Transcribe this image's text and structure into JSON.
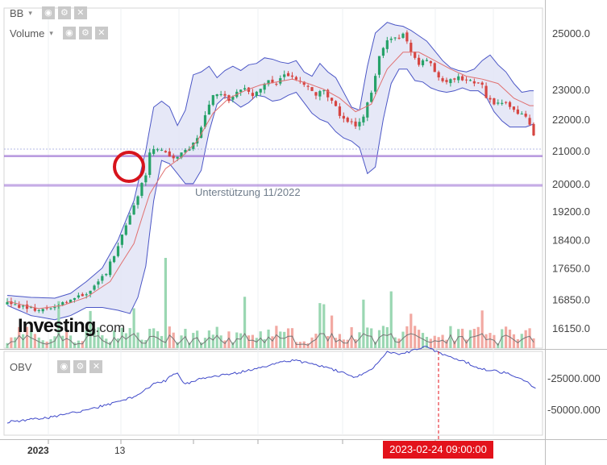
{
  "indicators": {
    "bb": {
      "label": "BB"
    },
    "volume": {
      "label": "Volume"
    },
    "obv": {
      "label": "OBV"
    }
  },
  "icons": {
    "caret": "▾",
    "eye": "◉",
    "gear": "⚙",
    "close": "✕"
  },
  "logo": {
    "main": "Investing",
    "suffix": ".com"
  },
  "date_badge": "2023-02-24 09:00:00",
  "annotation": "Unterstützung 11/2022",
  "colors": {
    "up": "#26a269",
    "down": "#d64541",
    "bb": "#4b56c6",
    "bb_fill": "#e2e4f6",
    "ma": "#e07070",
    "support": "#a37bd6",
    "obv": "#3f49c9",
    "badge": "#e3121b"
  },
  "chart_data": {
    "type": "candlestick",
    "price_axis": {
      "ticks": [
        25000.0,
        23000.0,
        22000.0,
        21000.0,
        20000.0,
        19200.0,
        18400.0,
        17650.0,
        16850.0,
        16150.0
      ],
      "scale": "log"
    },
    "x_tick_labels": [
      "2023",
      "13"
    ],
    "support_lines": [
      20850,
      20820,
      19970,
      19930
    ],
    "obv_axis": {
      "ticks": [
        -25000.0,
        -50000.0
      ]
    },
    "price_path": [
      [
        0,
        16750
      ],
      [
        4,
        16650
      ],
      [
        8,
        16580
      ],
      [
        12,
        16700
      ],
      [
        16,
        16820
      ],
      [
        19,
        16950
      ],
      [
        21,
        17100
      ],
      [
        23,
        17300
      ],
      [
        25,
        17550
      ],
      [
        27,
        18000
      ],
      [
        29,
        18500
      ],
      [
        31,
        19100
      ],
      [
        33,
        19650
      ],
      [
        35,
        20300
      ],
      [
        36,
        21000
      ],
      [
        38,
        21100
      ],
      [
        40,
        20900
      ],
      [
        42,
        20780
      ],
      [
        44,
        20920
      ],
      [
        46,
        21050
      ],
      [
        48,
        21450
      ],
      [
        50,
        22100
      ],
      [
        52,
        22750
      ],
      [
        54,
        22800
      ],
      [
        56,
        22650
      ],
      [
        58,
        22900
      ],
      [
        60,
        23100
      ],
      [
        62,
        22800
      ],
      [
        64,
        23050
      ],
      [
        66,
        23300
      ],
      [
        68,
        23200
      ],
      [
        70,
        23500
      ],
      [
        72,
        23450
      ],
      [
        74,
        23300
      ],
      [
        76,
        23050
      ],
      [
        78,
        22800
      ],
      [
        80,
        22950
      ],
      [
        82,
        22600
      ],
      [
        84,
        22150
      ],
      [
        86,
        21950
      ],
      [
        88,
        21800
      ],
      [
        90,
        22100
      ],
      [
        92,
        22900
      ],
      [
        94,
        24100
      ],
      [
        96,
        24700
      ],
      [
        98,
        24800
      ],
      [
        100,
        24950
      ],
      [
        102,
        24300
      ],
      [
        104,
        23850
      ],
      [
        106,
        24050
      ],
      [
        108,
        23650
      ],
      [
        110,
        23300
      ],
      [
        112,
        23300
      ],
      [
        114,
        23450
      ],
      [
        116,
        23300
      ],
      [
        118,
        23250
      ],
      [
        120,
        23200
      ],
      [
        121,
        22700
      ],
      [
        123,
        22500
      ],
      [
        125,
        22550
      ],
      [
        127,
        22450
      ],
      [
        129,
        22200
      ],
      [
        131,
        22050
      ],
      [
        133,
        21500
      ]
    ],
    "bb_upper_path": [
      [
        0,
        16950
      ],
      [
        6,
        16900
      ],
      [
        12,
        16880
      ],
      [
        16,
        17000
      ],
      [
        20,
        17300
      ],
      [
        24,
        17650
      ],
      [
        28,
        18400
      ],
      [
        32,
        19500
      ],
      [
        35,
        21000
      ],
      [
        37,
        22400
      ],
      [
        39,
        22600
      ],
      [
        41,
        22400
      ],
      [
        43,
        21800
      ],
      [
        45,
        22300
      ],
      [
        47,
        23500
      ],
      [
        49,
        23600
      ],
      [
        51,
        23800
      ],
      [
        53,
        23400
      ],
      [
        55,
        23650
      ],
      [
        57,
        23800
      ],
      [
        59,
        23650
      ],
      [
        61,
        23850
      ],
      [
        63,
        23900
      ],
      [
        65,
        24100
      ],
      [
        67,
        24050
      ],
      [
        69,
        23950
      ],
      [
        71,
        23900
      ],
      [
        73,
        24000
      ],
      [
        75,
        23600
      ],
      [
        77,
        23450
      ],
      [
        79,
        23900
      ],
      [
        81,
        23600
      ],
      [
        83,
        23400
      ],
      [
        85,
        22900
      ],
      [
        87,
        22400
      ],
      [
        89,
        22300
      ],
      [
        91,
        23800
      ],
      [
        93,
        25000
      ],
      [
        96,
        25400
      ],
      [
        98,
        25300
      ],
      [
        100,
        25250
      ],
      [
        102,
        25100
      ],
      [
        104,
        24900
      ],
      [
        106,
        24700
      ],
      [
        108,
        24350
      ],
      [
        110,
        24000
      ],
      [
        112,
        23750
      ],
      [
        114,
        23650
      ],
      [
        116,
        23600
      ],
      [
        118,
        23700
      ],
      [
        120,
        24000
      ],
      [
        122,
        24200
      ],
      [
        124,
        23850
      ],
      [
        126,
        23600
      ],
      [
        128,
        23200
      ],
      [
        130,
        22900
      ],
      [
        132,
        22950
      ]
    ],
    "bb_lower_path": [
      [
        0,
        16700
      ],
      [
        6,
        16450
      ],
      [
        12,
        16350
      ],
      [
        16,
        16450
      ],
      [
        20,
        16650
      ],
      [
        24,
        16650
      ],
      [
        28,
        16580
      ],
      [
        31,
        16500
      ],
      [
        33,
        16900
      ],
      [
        35,
        17700
      ],
      [
        37,
        19500
      ],
      [
        39,
        20700
      ],
      [
        41,
        20600
      ],
      [
        43,
        20300
      ],
      [
        45,
        20000
      ],
      [
        47,
        20000
      ],
      [
        49,
        20400
      ],
      [
        51,
        21600
      ],
      [
        53,
        22500
      ],
      [
        55,
        22750
      ],
      [
        57,
        22600
      ],
      [
        59,
        22400
      ],
      [
        61,
        22550
      ],
      [
        63,
        22800
      ],
      [
        65,
        22750
      ],
      [
        67,
        22600
      ],
      [
        69,
        22650
      ],
      [
        71,
        22800
      ],
      [
        73,
        22900
      ],
      [
        75,
        22550
      ],
      [
        77,
        22200
      ],
      [
        79,
        22000
      ],
      [
        81,
        21900
      ],
      [
        83,
        21600
      ],
      [
        85,
        21400
      ],
      [
        87,
        21300
      ],
      [
        89,
        21100
      ],
      [
        91,
        20300
      ],
      [
        93,
        20500
      ],
      [
        95,
        22000
      ],
      [
        97,
        23200
      ],
      [
        99,
        23700
      ],
      [
        101,
        23700
      ],
      [
        103,
        23300
      ],
      [
        105,
        23250
      ],
      [
        107,
        23050
      ],
      [
        109,
        22950
      ],
      [
        111,
        22900
      ],
      [
        113,
        22950
      ],
      [
        115,
        23050
      ],
      [
        117,
        22950
      ],
      [
        119,
        22950
      ],
      [
        121,
        22750
      ],
      [
        123,
        22250
      ],
      [
        125,
        21950
      ],
      [
        127,
        21750
      ],
      [
        129,
        21750
      ],
      [
        131,
        21750
      ],
      [
        133,
        21850
      ]
    ],
    "ma_path": [
      [
        0,
        16800
      ],
      [
        8,
        16620
      ],
      [
        14,
        16700
      ],
      [
        20,
        16900
      ],
      [
        26,
        17300
      ],
      [
        32,
        18300
      ],
      [
        36,
        19700
      ],
      [
        40,
        20450
      ],
      [
        44,
        20800
      ],
      [
        48,
        21300
      ],
      [
        52,
        22200
      ],
      [
        56,
        22700
      ],
      [
        60,
        22950
      ],
      [
        64,
        23150
      ],
      [
        68,
        23250
      ],
      [
        72,
        23350
      ],
      [
        76,
        23200
      ],
      [
        80,
        23000
      ],
      [
        84,
        22700
      ],
      [
        88,
        22250
      ],
      [
        92,
        22500
      ],
      [
        96,
        23700
      ],
      [
        100,
        24300
      ],
      [
        104,
        24300
      ],
      [
        108,
        24000
      ],
      [
        112,
        23700
      ],
      [
        116,
        23450
      ],
      [
        120,
        23350
      ],
      [
        124,
        23200
      ],
      [
        128,
        22700
      ],
      [
        132,
        22450
      ]
    ],
    "obv_path": [
      [
        0,
        -60000
      ],
      [
        6,
        -58000
      ],
      [
        10,
        -57000
      ],
      [
        16,
        -53000
      ],
      [
        22,
        -49000
      ],
      [
        28,
        -44000
      ],
      [
        32,
        -40000
      ],
      [
        35,
        -34000
      ],
      [
        37,
        -30000
      ],
      [
        40,
        -27000
      ],
      [
        42,
        -22000
      ],
      [
        43,
        -22000
      ],
      [
        45,
        -30000
      ],
      [
        48,
        -26000
      ],
      [
        52,
        -24000
      ],
      [
        58,
        -21000
      ],
      [
        64,
        -17000
      ],
      [
        68,
        -13000
      ],
      [
        72,
        -11000
      ],
      [
        76,
        -13000
      ],
      [
        80,
        -16000
      ],
      [
        84,
        -20000
      ],
      [
        88,
        -25000
      ],
      [
        92,
        -18000
      ],
      [
        96,
        -4000
      ],
      [
        100,
        -6000
      ],
      [
        104,
        -1000
      ],
      [
        106,
        -500
      ],
      [
        110,
        -6000
      ],
      [
        114,
        -10000
      ],
      [
        120,
        -18000
      ],
      [
        126,
        -21000
      ],
      [
        130,
        -25000
      ],
      [
        133,
        -33000
      ]
    ]
  }
}
